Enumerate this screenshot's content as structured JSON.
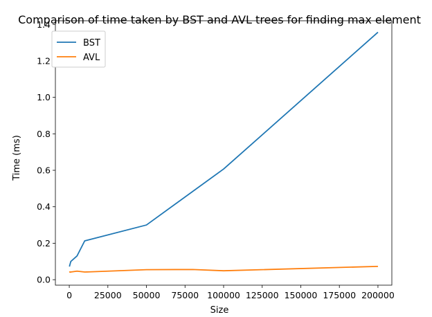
{
  "chart_data": {
    "type": "line",
    "title": "Comparison of time taken by BST and AVL trees for finding max element",
    "xlabel": "Size",
    "ylabel": "Time (ms)",
    "xlim": [
      -9000,
      209000
    ],
    "ylim": [
      -0.03,
      1.42
    ],
    "xticks": [
      0,
      25000,
      50000,
      75000,
      100000,
      125000,
      150000,
      175000,
      200000
    ],
    "xtick_labels": [
      "0",
      "25000",
      "50000",
      "75000",
      "100000",
      "125000",
      "150000",
      "175000",
      "200000"
    ],
    "yticks": [
      0.0,
      0.2,
      0.4,
      0.6,
      0.8,
      1.0,
      1.2,
      1.4
    ],
    "ytick_labels": [
      "0.0",
      "0.2",
      "0.4",
      "0.6",
      "0.8",
      "1.0",
      "1.2",
      "1.4"
    ],
    "grid": false,
    "legend_position": "top-left",
    "series": [
      {
        "name": "BST",
        "color": "#1f77b4",
        "x": [
          100,
          500,
          1000,
          5000,
          10000,
          50000,
          100000,
          200000
        ],
        "y": [
          0.072,
          0.085,
          0.1,
          0.13,
          0.213,
          0.3,
          0.607,
          1.357
        ]
      },
      {
        "name": "AVL",
        "color": "#ff7f0e",
        "x": [
          100,
          500,
          1000,
          5000,
          10000,
          50000,
          80000,
          100000,
          200000
        ],
        "y": [
          0.045,
          0.041,
          0.042,
          0.047,
          0.042,
          0.055,
          0.056,
          0.049,
          0.073
        ]
      }
    ]
  }
}
